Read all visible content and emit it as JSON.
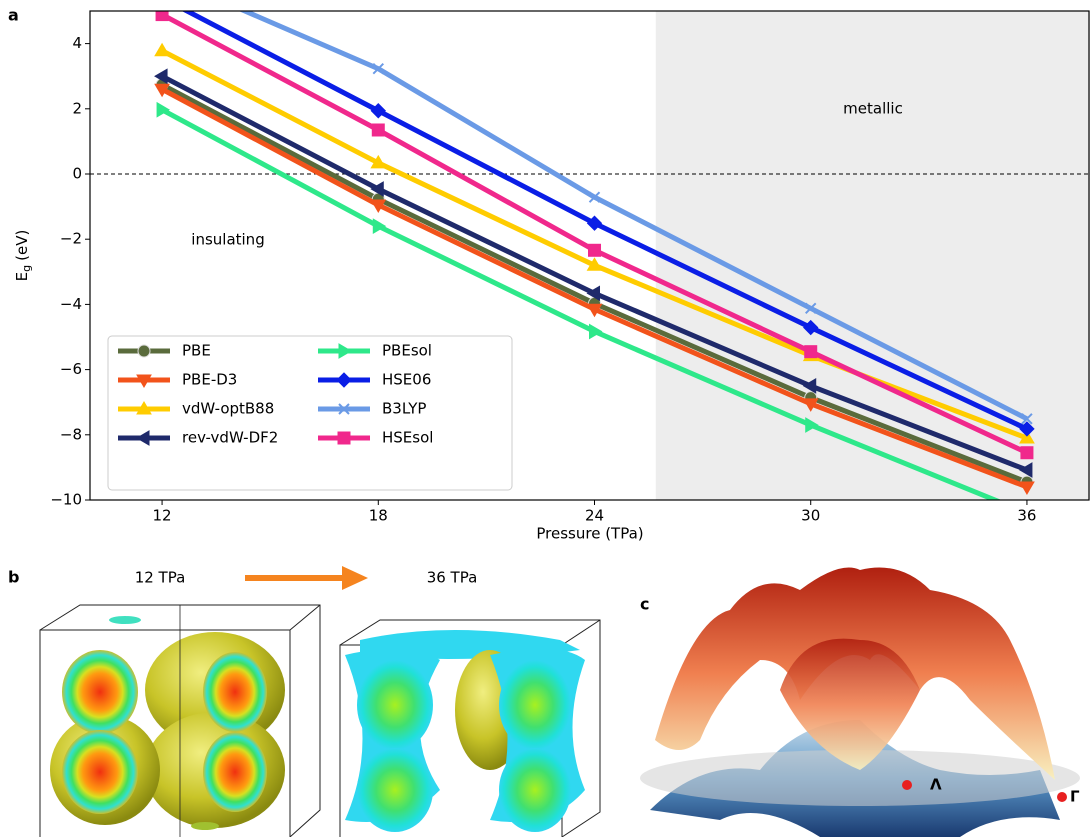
{
  "chart_data": {
    "type": "line",
    "panel_label": "a",
    "xlabel": "Pressure (TPa)",
    "ylabel": {
      "main": "E",
      "sub": "g",
      "unit": "(eV)"
    },
    "x": [
      12,
      18,
      24,
      30,
      36
    ],
    "xlim": [
      10,
      37.75
    ],
    "xticks": [
      12,
      18,
      24,
      30,
      36
    ],
    "ylim": [
      -10,
      5
    ],
    "yticks": [
      {
        "value": -10,
        "label": "−10"
      },
      {
        "value": -8,
        "label": "−8"
      },
      {
        "value": -6,
        "label": "−6"
      },
      {
        "value": -4,
        "label": "−4"
      },
      {
        "value": -2,
        "label": "−2"
      },
      0,
      2,
      4
    ],
    "shaded_xrange": [
      25.7,
      37.75
    ],
    "reference_line": 0,
    "annotations": [
      "insulating",
      "metallic"
    ],
    "legend": "lower left",
    "series": [
      {
        "name": "PBE",
        "color": "#5a6b3c",
        "marker": "circle",
        "values": [
          2.74,
          -0.77,
          -3.97,
          -6.86,
          -9.45
        ]
      },
      {
        "name": "PBE-D3",
        "color": "#f2531b",
        "marker": "tri-down",
        "values": [
          2.6,
          -0.95,
          -4.15,
          -7.05,
          -9.6
        ]
      },
      {
        "name": "vdW-optB88",
        "color": "#ffcc00",
        "marker": "tri-up",
        "values": [
          3.78,
          0.34,
          -2.8,
          -5.57,
          -8.1
        ]
      },
      {
        "name": "rev-vdW-DF2",
        "color": "#1f2a6b",
        "marker": "tri-left",
        "values": [
          3.0,
          -0.46,
          -3.66,
          -6.5,
          -9.08
        ]
      },
      {
        "name": "PBEsol",
        "color": "#2ee88a",
        "marker": "tri-right",
        "values": [
          1.97,
          -1.6,
          -4.83,
          -7.7,
          -10.4
        ]
      },
      {
        "name": "HSE06",
        "color": "#0a1ee6",
        "marker": "diamond",
        "values": [
          5.4,
          1.94,
          -1.51,
          -4.71,
          -7.82
        ]
      },
      {
        "name": "B3LYP",
        "color": "#6a9ae6",
        "marker": "x",
        "values": [
          6.1,
          3.23,
          -0.71,
          -4.12,
          -7.51
        ]
      },
      {
        "name": "HSEsol",
        "color": "#f0288c",
        "marker": "square",
        "values": [
          4.89,
          1.35,
          -2.34,
          -5.45,
          -8.55
        ]
      }
    ]
  },
  "panel_b": {
    "label": "b",
    "left_title": "12 TPa",
    "right_title": "36 TPa"
  },
  "panel_c": {
    "label": "c",
    "points": [
      "Λ",
      "Γ"
    ]
  }
}
